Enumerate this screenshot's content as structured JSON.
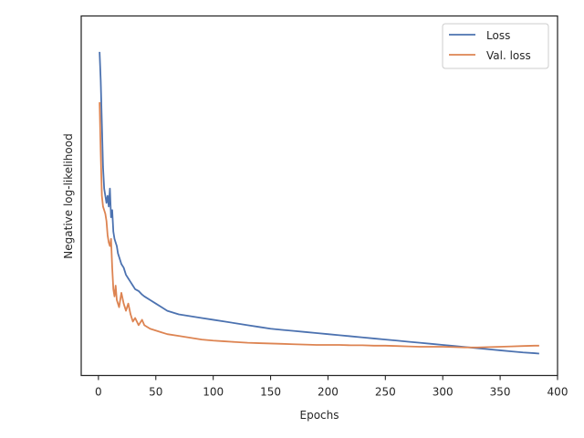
{
  "chart_data": {
    "type": "line",
    "xlabel": "Epochs",
    "ylabel": "Negative log-likelihood",
    "xlim": [
      -15,
      400
    ],
    "ylim": [
      0,
      1
    ],
    "xticks": [
      0,
      50,
      100,
      150,
      200,
      250,
      300,
      350,
      400
    ],
    "yticks_visible": false,
    "grid": false,
    "legend_position": "top-right",
    "series": [
      {
        "name": "Loss",
        "color": "#4c72b0",
        "x": [
          1,
          2,
          3,
          4,
          5,
          6,
          7,
          8,
          9,
          10,
          11,
          12,
          13,
          14,
          15,
          16,
          17,
          18,
          20,
          22,
          24,
          26,
          28,
          30,
          32,
          35,
          38,
          40,
          45,
          50,
          55,
          60,
          70,
          80,
          90,
          100,
          110,
          120,
          130,
          140,
          150,
          160,
          170,
          180,
          190,
          200,
          210,
          220,
          230,
          240,
          250,
          260,
          270,
          280,
          290,
          300,
          310,
          320,
          330,
          340,
          350,
          360,
          370,
          380,
          384
        ],
        "y": [
          0.9,
          0.82,
          0.7,
          0.58,
          0.52,
          0.5,
          0.48,
          0.5,
          0.47,
          0.52,
          0.44,
          0.46,
          0.4,
          0.38,
          0.37,
          0.36,
          0.34,
          0.33,
          0.31,
          0.3,
          0.28,
          0.27,
          0.26,
          0.25,
          0.24,
          0.235,
          0.225,
          0.22,
          0.21,
          0.2,
          0.19,
          0.18,
          0.17,
          0.165,
          0.16,
          0.155,
          0.15,
          0.145,
          0.14,
          0.135,
          0.13,
          0.127,
          0.124,
          0.121,
          0.118,
          0.115,
          0.112,
          0.109,
          0.106,
          0.103,
          0.1,
          0.097,
          0.094,
          0.091,
          0.088,
          0.085,
          0.082,
          0.079,
          0.076,
          0.073,
          0.07,
          0.067,
          0.064,
          0.062,
          0.061
        ]
      },
      {
        "name": "Val. loss",
        "color": "#dd8452",
        "x": [
          1,
          2,
          3,
          4,
          5,
          6,
          7,
          8,
          9,
          10,
          11,
          12,
          13,
          14,
          15,
          16,
          17,
          18,
          20,
          22,
          24,
          26,
          28,
          30,
          32,
          35,
          38,
          40,
          45,
          50,
          55,
          60,
          70,
          80,
          90,
          100,
          110,
          120,
          130,
          140,
          150,
          160,
          170,
          180,
          190,
          200,
          210,
          220,
          230,
          240,
          250,
          260,
          270,
          280,
          290,
          300,
          310,
          320,
          330,
          340,
          350,
          360,
          370,
          380,
          384
        ],
        "y": [
          0.76,
          0.62,
          0.5,
          0.47,
          0.46,
          0.45,
          0.43,
          0.39,
          0.37,
          0.36,
          0.38,
          0.3,
          0.24,
          0.22,
          0.25,
          0.21,
          0.2,
          0.19,
          0.23,
          0.2,
          0.18,
          0.2,
          0.17,
          0.15,
          0.16,
          0.14,
          0.155,
          0.14,
          0.13,
          0.125,
          0.12,
          0.115,
          0.11,
          0.105,
          0.1,
          0.097,
          0.095,
          0.093,
          0.091,
          0.09,
          0.089,
          0.088,
          0.087,
          0.086,
          0.085,
          0.085,
          0.085,
          0.084,
          0.084,
          0.083,
          0.083,
          0.082,
          0.081,
          0.08,
          0.08,
          0.08,
          0.079,
          0.078,
          0.078,
          0.079,
          0.08,
          0.081,
          0.082,
          0.083,
          0.083
        ]
      }
    ]
  }
}
